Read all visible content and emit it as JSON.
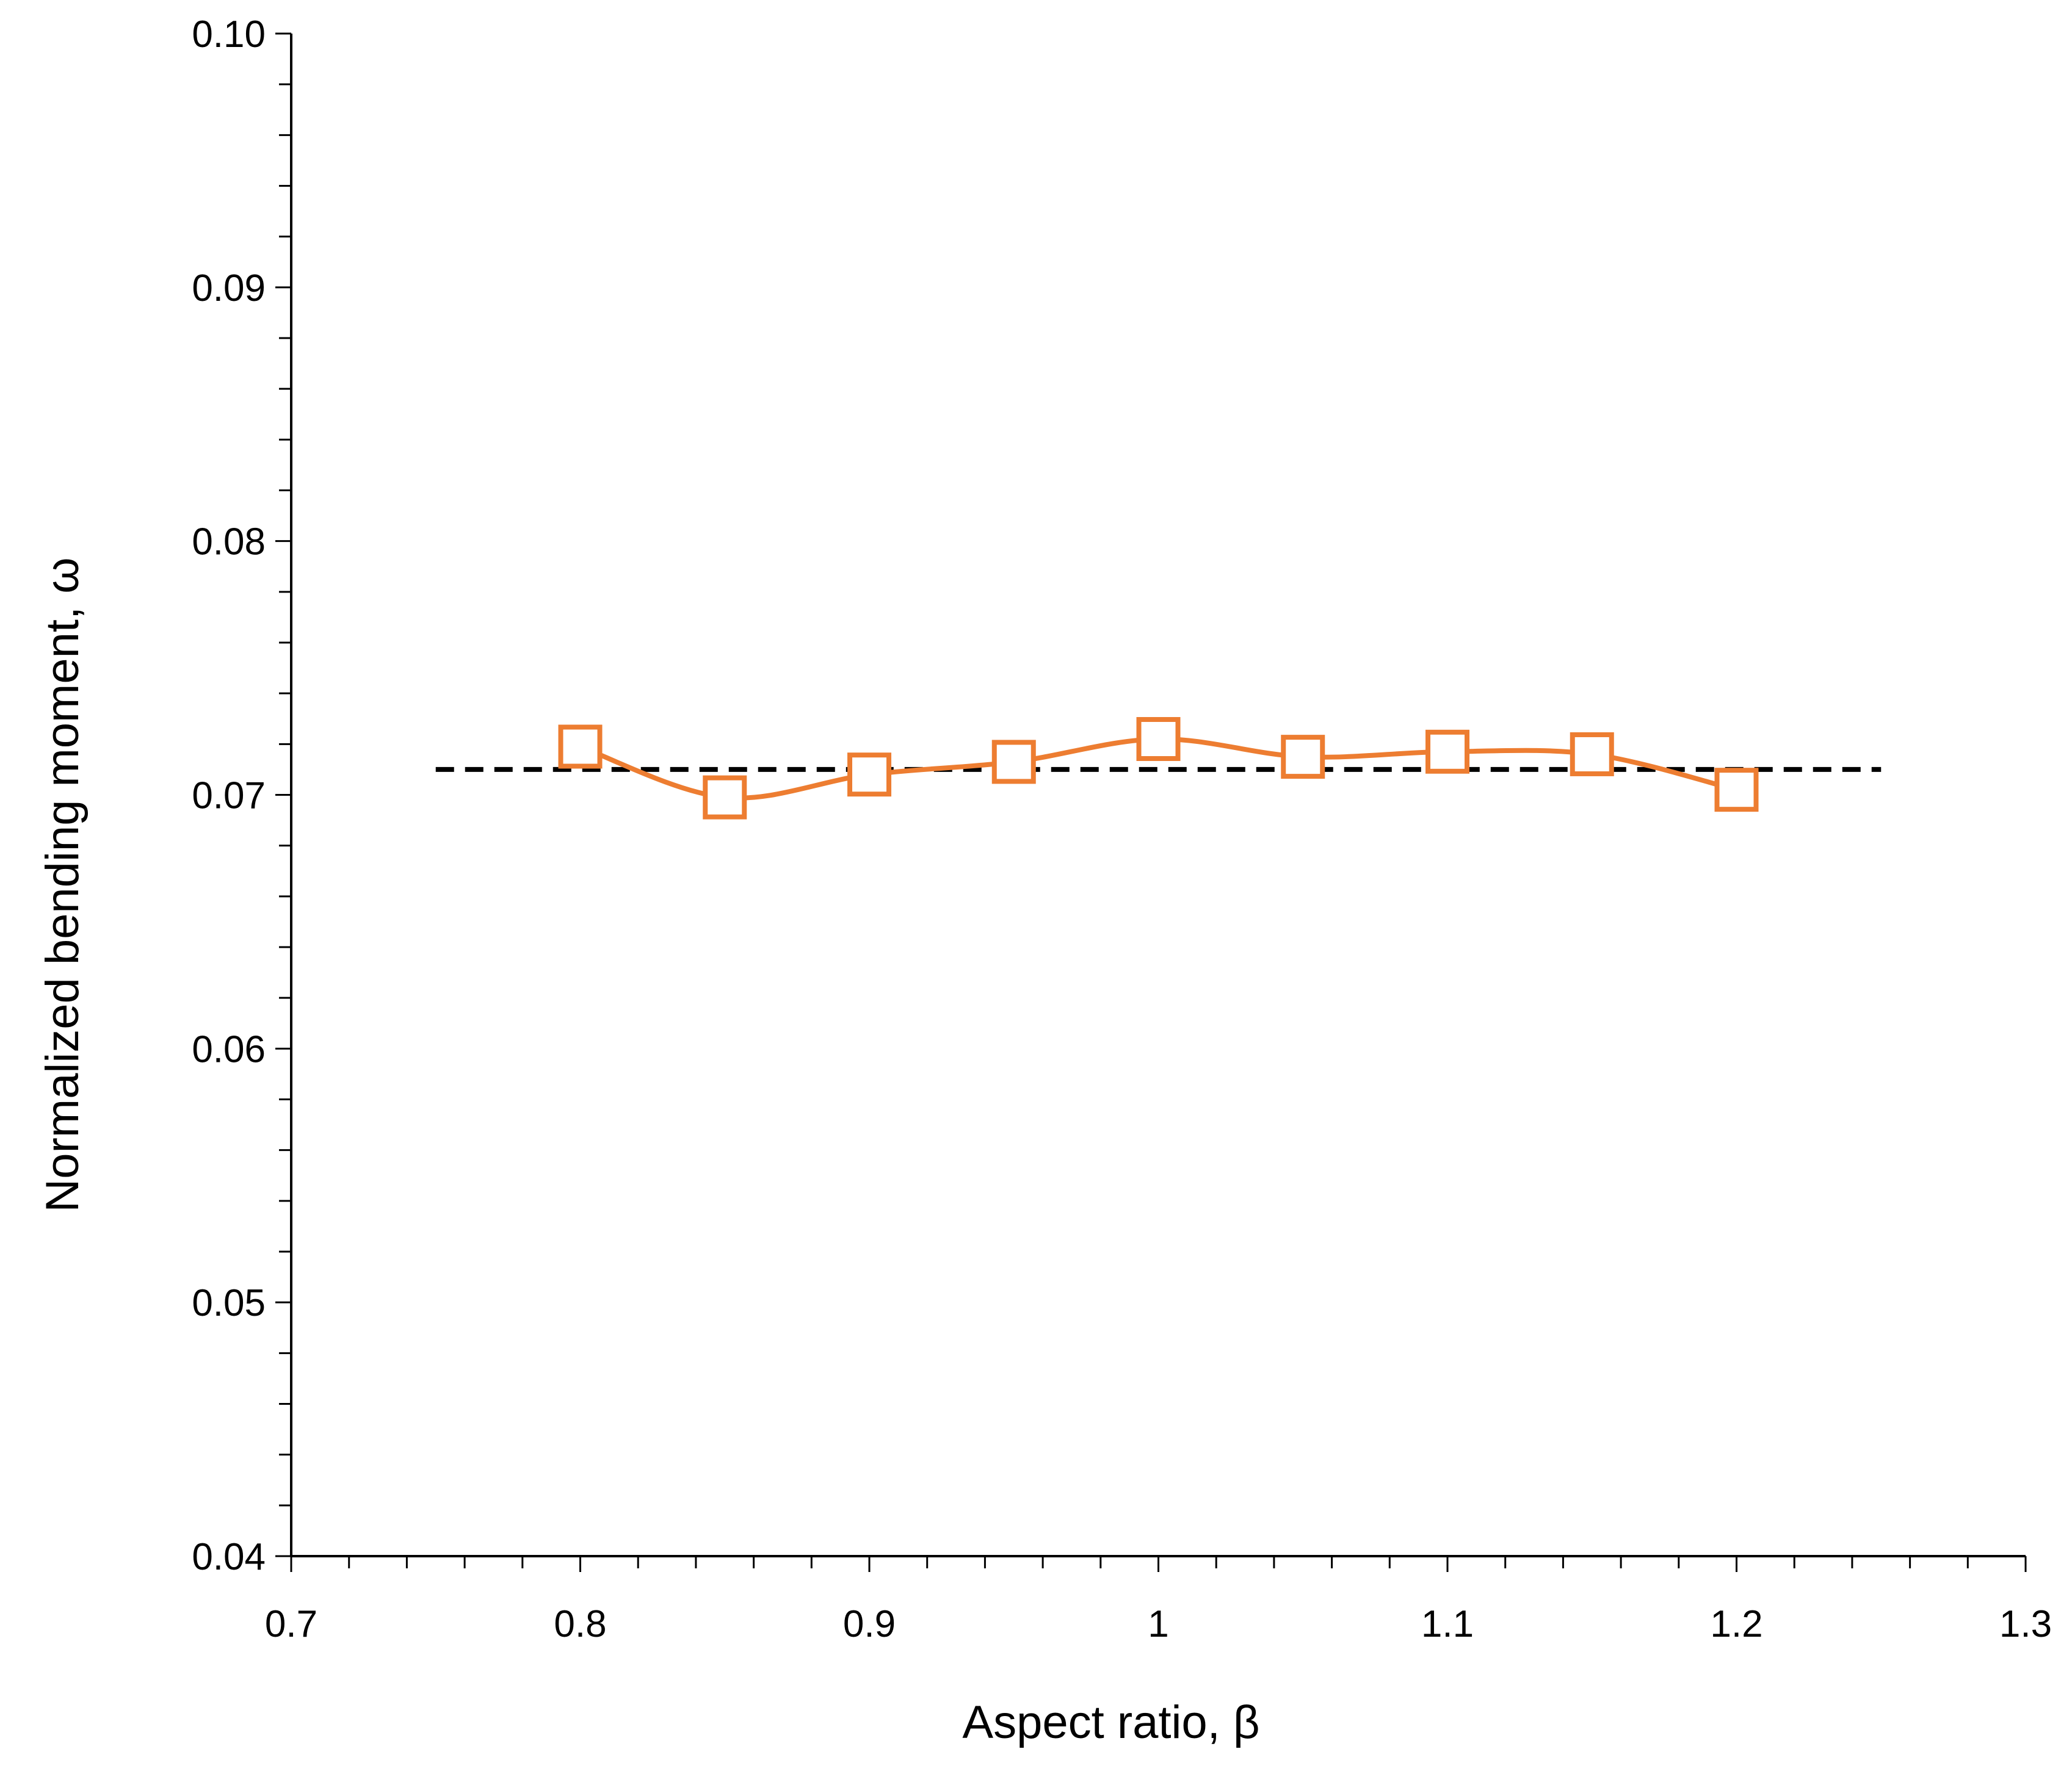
{
  "chart_data": {
    "type": "line",
    "title": "",
    "xlabel": "Aspect ratio, β",
    "ylabel": "Normalized bending moment, ω",
    "xlim": [
      0.7,
      1.3
    ],
    "ylim": [
      0.04,
      0.1
    ],
    "x_ticks": [
      0.7,
      0.8,
      0.9,
      1.0,
      1.1,
      1.2,
      1.3
    ],
    "x_tick_labels": [
      "0.7",
      "0.8",
      "0.9",
      "1",
      "1.1",
      "1.2",
      "1.3"
    ],
    "y_ticks": [
      0.04,
      0.05,
      0.06,
      0.07,
      0.08,
      0.09,
      0.1
    ],
    "y_tick_labels": [
      "0.04",
      "0.05",
      "0.06",
      "0.07",
      "0.08",
      "0.09",
      "0.10"
    ],
    "grid": false,
    "legend": "none",
    "series": [
      {
        "style": "smooth-line-open-square-markers",
        "color": "#ED7D31",
        "x": [
          0.8,
          0.85,
          0.9,
          0.95,
          1.0,
          1.05,
          1.1,
          1.15,
          1.2
        ],
        "y": [
          0.0719,
          0.0699,
          0.0708,
          0.0713,
          0.0722,
          0.0715,
          0.0717,
          0.0716,
          0.0702
        ]
      },
      {
        "style": "dashed-reference-line",
        "color": "#000000",
        "x": [
          0.75,
          1.25
        ],
        "y": [
          0.071,
          0.071
        ]
      }
    ]
  }
}
